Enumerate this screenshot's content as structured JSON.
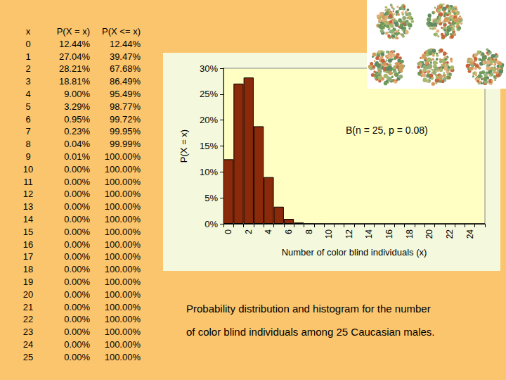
{
  "chart_data": {
    "type": "bar",
    "annotation": "B(n = 25, p = 0.08)",
    "x_label": "Number of color blind individuals (x)",
    "y_label": "P(X = x)",
    "categories": [
      0,
      null,
      2,
      null,
      4,
      null,
      6,
      null,
      8,
      null,
      10,
      null,
      12,
      null,
      14,
      null,
      16,
      null,
      18,
      null,
      20,
      null,
      22,
      null,
      24,
      null
    ],
    "values": [
      12.44,
      27.04,
      28.21,
      18.81,
      9.0,
      3.29,
      0.95,
      0.23,
      0.04,
      0.01,
      0,
      0,
      0,
      0,
      0,
      0,
      0,
      0,
      0,
      0,
      0,
      0,
      0,
      0,
      0,
      0
    ],
    "color": "#8b2a0a",
    "ylim": [
      0,
      30
    ],
    "yticks": [
      {
        "value": 0,
        "label": "0%"
      },
      {
        "value": 5,
        "label": "5%"
      },
      {
        "value": 10,
        "label": "10%"
      },
      {
        "value": 15,
        "label": "15%"
      },
      {
        "value": 20,
        "label": "20%"
      },
      {
        "value": 25,
        "label": "25%"
      },
      {
        "value": 30,
        "label": "30%"
      }
    ],
    "grid": false
  },
  "table": {
    "header": [
      "x",
      "P(X = x)",
      "P(X <= x)"
    ],
    "rows": [
      [
        "0",
        "12.44%",
        "12.44%"
      ],
      [
        "1",
        "27.04%",
        "39.47%"
      ],
      [
        "2",
        "28.21%",
        "67.68%"
      ],
      [
        "3",
        "18.81%",
        "86.49%"
      ],
      [
        "4",
        "9.00%",
        "95.49%"
      ],
      [
        "5",
        "3.29%",
        "98.77%"
      ],
      [
        "6",
        "0.95%",
        "99.72%"
      ],
      [
        "7",
        "0.23%",
        "99.95%"
      ],
      [
        "8",
        "0.04%",
        "99.99%"
      ],
      [
        "9",
        "0.01%",
        "100.00%"
      ],
      [
        "10",
        "0.00%",
        "100.00%"
      ],
      [
        "11",
        "0.00%",
        "100.00%"
      ],
      [
        "12",
        "0.00%",
        "100.00%"
      ],
      [
        "13",
        "0.00%",
        "100.00%"
      ],
      [
        "14",
        "0.00%",
        "100.00%"
      ],
      [
        "15",
        "0.00%",
        "100.00%"
      ],
      [
        "16",
        "0.00%",
        "100.00%"
      ],
      [
        "17",
        "0.00%",
        "100.00%"
      ],
      [
        "18",
        "0.00%",
        "100.00%"
      ],
      [
        "19",
        "0.00%",
        "100.00%"
      ],
      [
        "20",
        "0.00%",
        "100.00%"
      ],
      [
        "21",
        "0.00%",
        "100.00%"
      ],
      [
        "22",
        "0.00%",
        "100.00%"
      ],
      [
        "23",
        "0.00%",
        "100.00%"
      ],
      [
        "24",
        "0.00%",
        "100.00%"
      ],
      [
        "25",
        "0.00%",
        "100.00%"
      ]
    ]
  },
  "caption": [
    "Probability distribution and histogram for the number",
    "of color blind individuals among 25 Caucasian males."
  ]
}
